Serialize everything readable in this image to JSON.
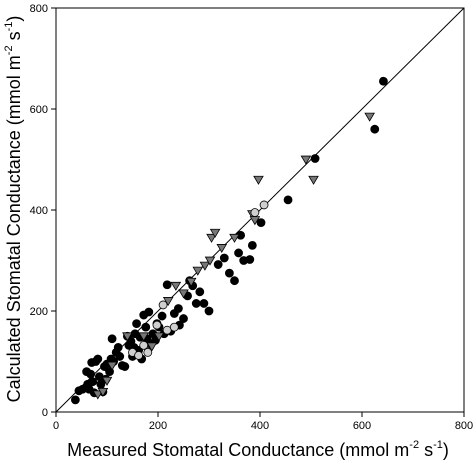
{
  "chart_data": {
    "type": "scatter",
    "title": "",
    "xlabel": "Measured Stomatal Conductance (mmol m-2 s-1)",
    "ylabel": "Calculated Stomatal Conductance (mmol m-2 s-1)",
    "xlabel_parts": {
      "main": "Measured Stomatal Conductance (mmol m",
      "exp1": "-2",
      "mid": " s",
      "exp2": "-1",
      "end": ")"
    },
    "ylabel_parts": {
      "main": "Calculated Stomatal Conductance (mmol m",
      "exp1": "-2",
      "mid": " s",
      "exp2": "-1",
      "end": ")"
    },
    "xlim": [
      0,
      800
    ],
    "ylim": [
      0,
      800
    ],
    "xticks": [
      0,
      200,
      400,
      600,
      800
    ],
    "yticks": [
      0,
      200,
      400,
      600,
      800
    ],
    "xtick_labels": [
      "0",
      "200",
      "400",
      "600",
      "800"
    ],
    "ytick_labels": [
      "0",
      "200",
      "400",
      "600",
      "800"
    ],
    "grid": false,
    "reference_line": {
      "type": "1:1",
      "from": [
        0,
        0
      ],
      "to": [
        800,
        800
      ],
      "color": "#000000"
    },
    "series": [
      {
        "marker": "circle",
        "fill": "#000000",
        "points": [
          [
            38,
            24
          ],
          [
            45,
            42
          ],
          [
            52,
            45
          ],
          [
            58,
            48
          ],
          [
            60,
            80
          ],
          [
            62,
            55
          ],
          [
            65,
            45
          ],
          [
            68,
            75
          ],
          [
            70,
            98
          ],
          [
            72,
            60
          ],
          [
            75,
            38
          ],
          [
            78,
            100
          ],
          [
            82,
            105
          ],
          [
            85,
            70
          ],
          [
            88,
            55
          ],
          [
            92,
            40
          ],
          [
            95,
            90
          ],
          [
            98,
            65
          ],
          [
            100,
            95
          ],
          [
            105,
            80
          ],
          [
            108,
            105
          ],
          [
            110,
            145
          ],
          [
            113,
            100
          ],
          [
            118,
            118
          ],
          [
            122,
            128
          ],
          [
            125,
            110
          ],
          [
            130,
            92
          ],
          [
            135,
            90
          ],
          [
            140,
            150
          ],
          [
            143,
            132
          ],
          [
            147,
            140
          ],
          [
            150,
            110
          ],
          [
            153,
            128
          ],
          [
            155,
            155
          ],
          [
            158,
            175
          ],
          [
            162,
            122
          ],
          [
            165,
            148
          ],
          [
            168,
            105
          ],
          [
            172,
            192
          ],
          [
            176,
            168
          ],
          [
            178,
            145
          ],
          [
            182,
            198
          ],
          [
            186,
            135
          ],
          [
            190,
            155
          ],
          [
            195,
            142
          ],
          [
            198,
            175
          ],
          [
            202,
            168
          ],
          [
            208,
            190
          ],
          [
            212,
            155
          ],
          [
            218,
            252
          ],
          [
            225,
            160
          ],
          [
            232,
            195
          ],
          [
            240,
            205
          ],
          [
            242,
            172
          ],
          [
            250,
            185
          ],
          [
            258,
            230
          ],
          [
            262,
            260
          ],
          [
            268,
            250
          ],
          [
            275,
            215
          ],
          [
            282,
            238
          ],
          [
            290,
            215
          ],
          [
            300,
            200
          ],
          [
            318,
            292
          ],
          [
            330,
            305
          ],
          [
            340,
            275
          ],
          [
            350,
            260
          ],
          [
            358,
            315
          ],
          [
            362,
            350
          ],
          [
            368,
            300
          ],
          [
            380,
            302
          ],
          [
            385,
            330
          ],
          [
            402,
            375
          ],
          [
            455,
            420
          ],
          [
            508,
            502
          ],
          [
            625,
            560
          ],
          [
            642,
            655
          ]
        ]
      },
      {
        "marker": "triangle-down",
        "fill": "#777777",
        "points": [
          [
            82,
            35
          ],
          [
            92,
            40
          ],
          [
            100,
            62
          ],
          [
            110,
            92
          ],
          [
            140,
            150
          ],
          [
            172,
            150
          ],
          [
            182,
            120
          ],
          [
            188,
            130
          ],
          [
            202,
            150
          ],
          [
            220,
            220
          ],
          [
            235,
            250
          ],
          [
            250,
            235
          ],
          [
            265,
            258
          ],
          [
            278,
            280
          ],
          [
            292,
            290
          ],
          [
            302,
            300
          ],
          [
            305,
            345
          ],
          [
            312,
            355
          ],
          [
            325,
            325
          ],
          [
            350,
            345
          ],
          [
            385,
            392
          ],
          [
            390,
            380
          ],
          [
            397,
            460
          ],
          [
            490,
            500
          ],
          [
            505,
            460
          ],
          [
            615,
            585
          ]
        ]
      },
      {
        "marker": "circle",
        "fill": "#cfcfcf",
        "points": [
          [
            150,
            118
          ],
          [
            162,
            112
          ],
          [
            172,
            132
          ],
          [
            180,
            118
          ],
          [
            198,
            172
          ],
          [
            210,
            212
          ],
          [
            218,
            162
          ],
          [
            232,
            168
          ],
          [
            390,
            395
          ],
          [
            408,
            410
          ]
        ]
      }
    ]
  }
}
